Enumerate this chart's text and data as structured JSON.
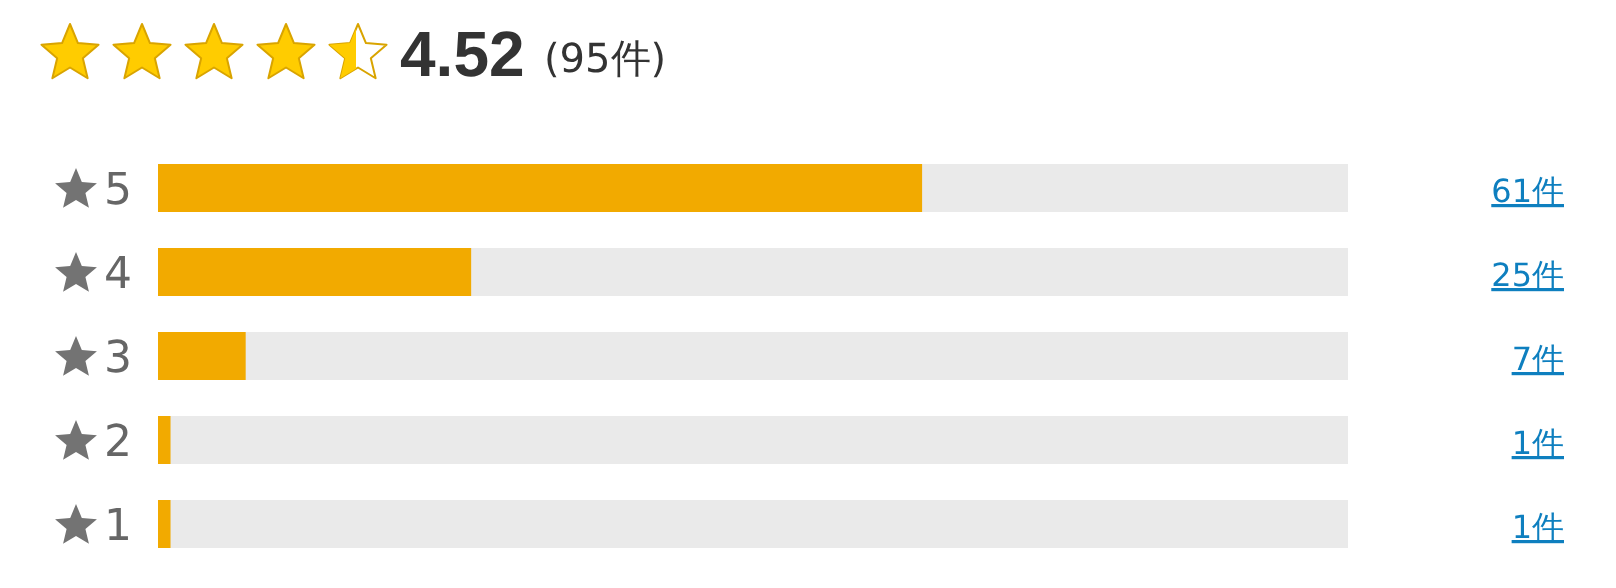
{
  "chart_data": {
    "type": "bar",
    "orientation": "horizontal",
    "title": "4.52",
    "subtitle": "(95件)",
    "categories": [
      "5",
      "4",
      "3",
      "2",
      "1"
    ],
    "values": [
      61,
      25,
      7,
      1,
      1
    ],
    "value_labels": [
      "61件",
      "25件",
      "7件",
      "1件",
      "1件"
    ],
    "color": "#f2aa00",
    "xlim": [
      0,
      95
    ],
    "tick_labels": "y"
  }
}
